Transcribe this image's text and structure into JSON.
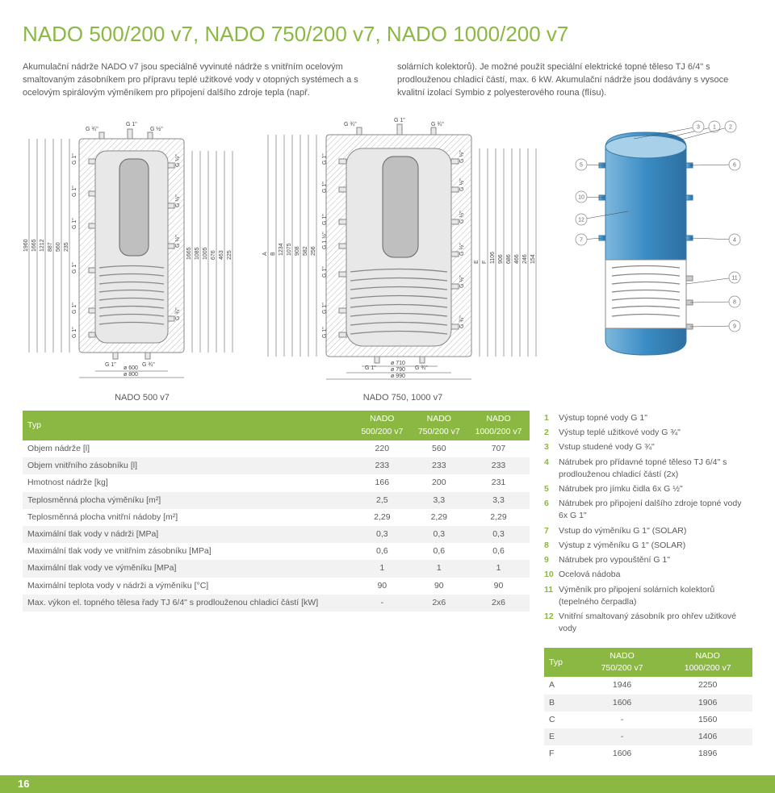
{
  "title": "NADO 500/200 v7, NADO 750/200 v7, NADO 1000/200 v7",
  "intro": {
    "left": "Akumulační nádrže NADO v7 jsou speciálně vyvinuté nádrže s vnitřním ocelovým smaltovaným zásobníkem pro přípravu teplé užitkové vody v otopných systémech a s ocelovým spirálovým výměníkem pro připojení dalšího zdroje tepla (např.",
    "right": "solárních kolektorů). Je možné použít speciální elektrické topné těleso TJ 6/4\" s prodlouženou chladicí částí, max. 6 kW. Akumulační nádrže jsou dodávány s vysoce kvalitní izolací Symbio z polyesterového rouna (flísu)."
  },
  "models": {
    "a": "NADO 500 v7",
    "b": "NADO 750, 1000 v7"
  },
  "diagA": {
    "top": [
      "G ¾\"",
      "G 1\"",
      "G ½\""
    ],
    "right": [
      "G ½\"",
      "G ½\"",
      "G ½\"",
      "G ¾\""
    ],
    "left": [
      "G 1\"",
      "G 1\"",
      "G 1\"",
      "G 1\"",
      "G 1\"",
      "G 1\""
    ],
    "bottom": [
      "G 1\"",
      "G ¾\""
    ],
    "vdims": [
      "1960",
      "1665",
      "1212",
      "887",
      "560",
      "235"
    ],
    "rdims": [
      "1665",
      "1085",
      "1005",
      "676",
      "463",
      "225"
    ],
    "dia": [
      "ø 600",
      "ø 800"
    ]
  },
  "diagB": {
    "top": [
      "G ¾\"",
      "G 1\"",
      "G ¾\""
    ],
    "right": [
      "G ½\"",
      "G ½\"",
      "G ½\"",
      "G ½\"",
      "G ½\"",
      "G ¾\""
    ],
    "left": [
      "G 1\"",
      "G 1\"",
      "G 1\"",
      "G 1 ½\"",
      "G 1\"",
      "G 1\"",
      "G 1\""
    ],
    "bottom": [
      "G 1\"",
      "G ¾\""
    ],
    "vdimsL": [
      "A",
      "B",
      "1234",
      "1075",
      "908",
      "582",
      "256"
    ],
    "vdimsR": [
      "E",
      "F",
      "1106",
      "906",
      "686",
      "466",
      "246",
      "154"
    ],
    "dia": [
      "ø 710",
      "ø 790",
      "ø 990"
    ]
  },
  "callouts": [
    "1",
    "2",
    "3",
    "4",
    "5",
    "6",
    "7",
    "8",
    "9",
    "10",
    "11",
    "12"
  ],
  "mainTable": {
    "head": [
      "Typ",
      "NADO 500/200 v7",
      "NADO 750/200 v7",
      "NADO 1000/200 v7"
    ],
    "rows": [
      [
        "Objem nádrže [l]",
        "220",
        "560",
        "707"
      ],
      [
        "Objem vnitřního zásobníku [l]",
        "233",
        "233",
        "233"
      ],
      [
        "Hmotnost nádrže [kg]",
        "166",
        "200",
        "231"
      ],
      [
        "Teplosměnná plocha výměníku [m²]",
        "2,5",
        "3,3",
        "3,3"
      ],
      [
        "Teplosměnná plocha vnitřní nádoby [m²]",
        "2,29",
        "2,29",
        "2,29"
      ],
      [
        "Maximální tlak vody v nádrži [MPa]",
        "0,3",
        "0,3",
        "0,3"
      ],
      [
        "Maximální tlak vody ve vnitřním zásobníku [MPa]",
        "0,6",
        "0,6",
        "0,6"
      ],
      [
        "Maximální tlak vody ve výměníku [MPa]",
        "1",
        "1",
        "1"
      ],
      [
        "Maximální teplota vody v nádrži a výměníku [°C]",
        "90",
        "90",
        "90"
      ],
      [
        "Max. výkon el. topného tělesa řady TJ 6/4\" s prodlouženou chladicí částí [kW]",
        "-",
        "2x6",
        "2x6"
      ]
    ]
  },
  "legend": [
    [
      "1",
      "Výstup topné vody G 1\""
    ],
    [
      "2",
      "Výstup teplé užitkové vody G ¾\""
    ],
    [
      "3",
      "Vstup studené vody G ¾\""
    ],
    [
      "4",
      "Nátrubek pro přídavné topné těleso TJ 6/4\" s prodlouženou chladicí částí (2x)"
    ],
    [
      "5",
      "Nátrubek pro jímku čidla 6x G ½\""
    ],
    [
      "6",
      "Nátrubek pro připojení dalšího zdroje topné vody 6x G 1\""
    ],
    [
      "7",
      "Vstup do výměníku G 1\" (SOLAR)"
    ],
    [
      "8",
      "Výstup z výměníku G 1\" (SOLAR)"
    ],
    [
      "9",
      "Nátrubek pro vypouštění G 1\""
    ],
    [
      "10",
      "Ocelová nádoba"
    ],
    [
      "11",
      "Výměník pro připojení solárních kolektorů (tepelného čerpadla)"
    ],
    [
      "12",
      "Vnitřní smaltovaný zásobník pro ohřev užitkové vody"
    ]
  ],
  "dimsTable": {
    "head": [
      "Typ",
      "NADO 750/200 v7",
      "NADO 1000/200 v7"
    ],
    "rows": [
      [
        "A",
        "1946",
        "2250"
      ],
      [
        "B",
        "1606",
        "1906"
      ],
      [
        "C",
        "-",
        "1560"
      ],
      [
        "E",
        "-",
        "1406"
      ],
      [
        "F",
        "1606",
        "1896"
      ]
    ]
  },
  "page": "16",
  "colors": {
    "accent": "#8bb843",
    "text": "#5a5a5a"
  }
}
